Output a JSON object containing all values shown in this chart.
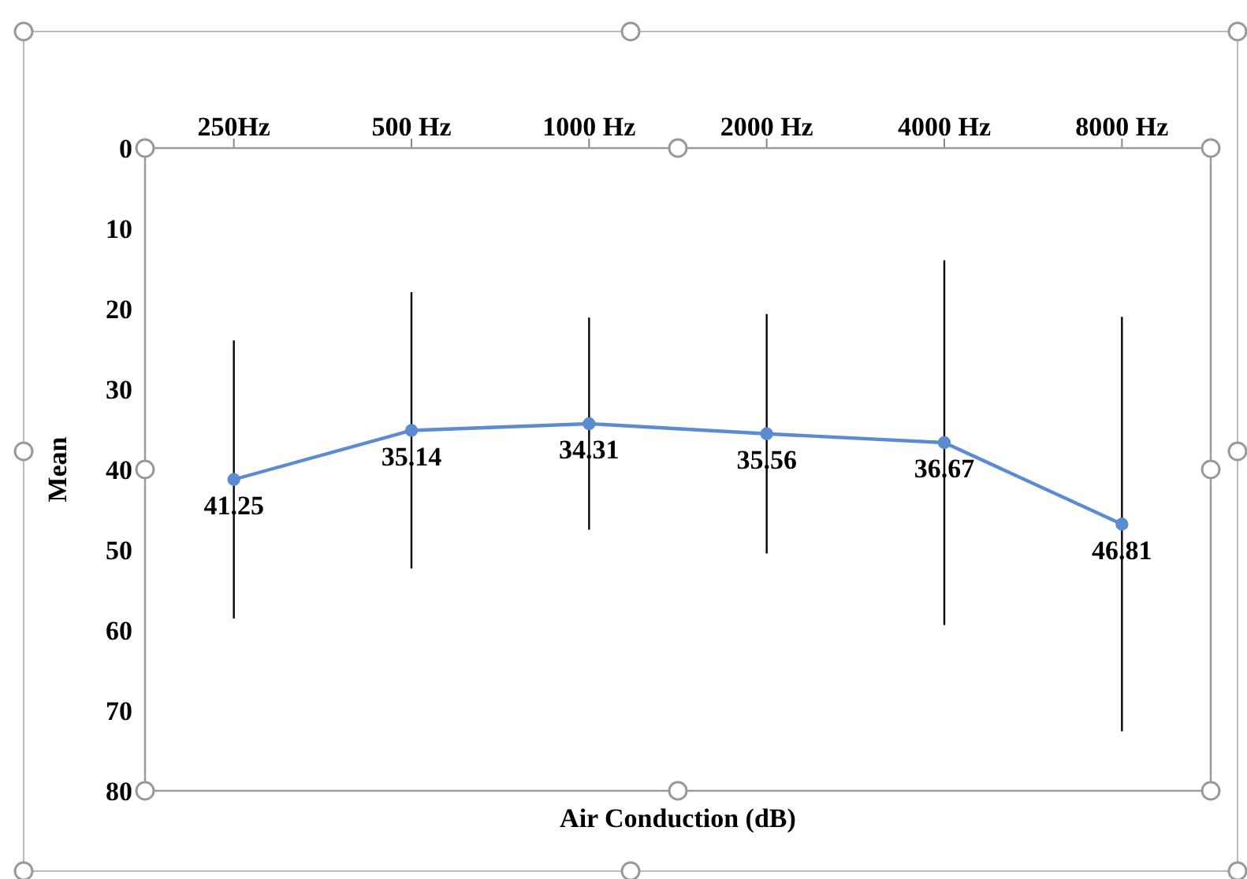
{
  "chart_data": {
    "type": "line",
    "xlabel": "Air Conduction (dB)",
    "ylabel": "Mean",
    "categories": [
      "250Hz",
      "500 Hz",
      "1000 Hz",
      "2000 Hz",
      "4000 Hz",
      "8000 Hz"
    ],
    "series": [
      {
        "color": "#5b8bd0",
        "values": [
          41.25,
          35.14,
          34.31,
          35.56,
          36.67,
          46.81
        ],
        "errors": [
          17.3,
          17.2,
          13.2,
          14.9,
          22.7,
          25.8
        ]
      }
    ],
    "ylim": [
      80,
      0
    ],
    "yticks": [
      0,
      10,
      20,
      30,
      40,
      50,
      60,
      70,
      80
    ],
    "data_labels": true,
    "marker": "circle",
    "line_style": "solid",
    "grid": false,
    "legend": false
  }
}
